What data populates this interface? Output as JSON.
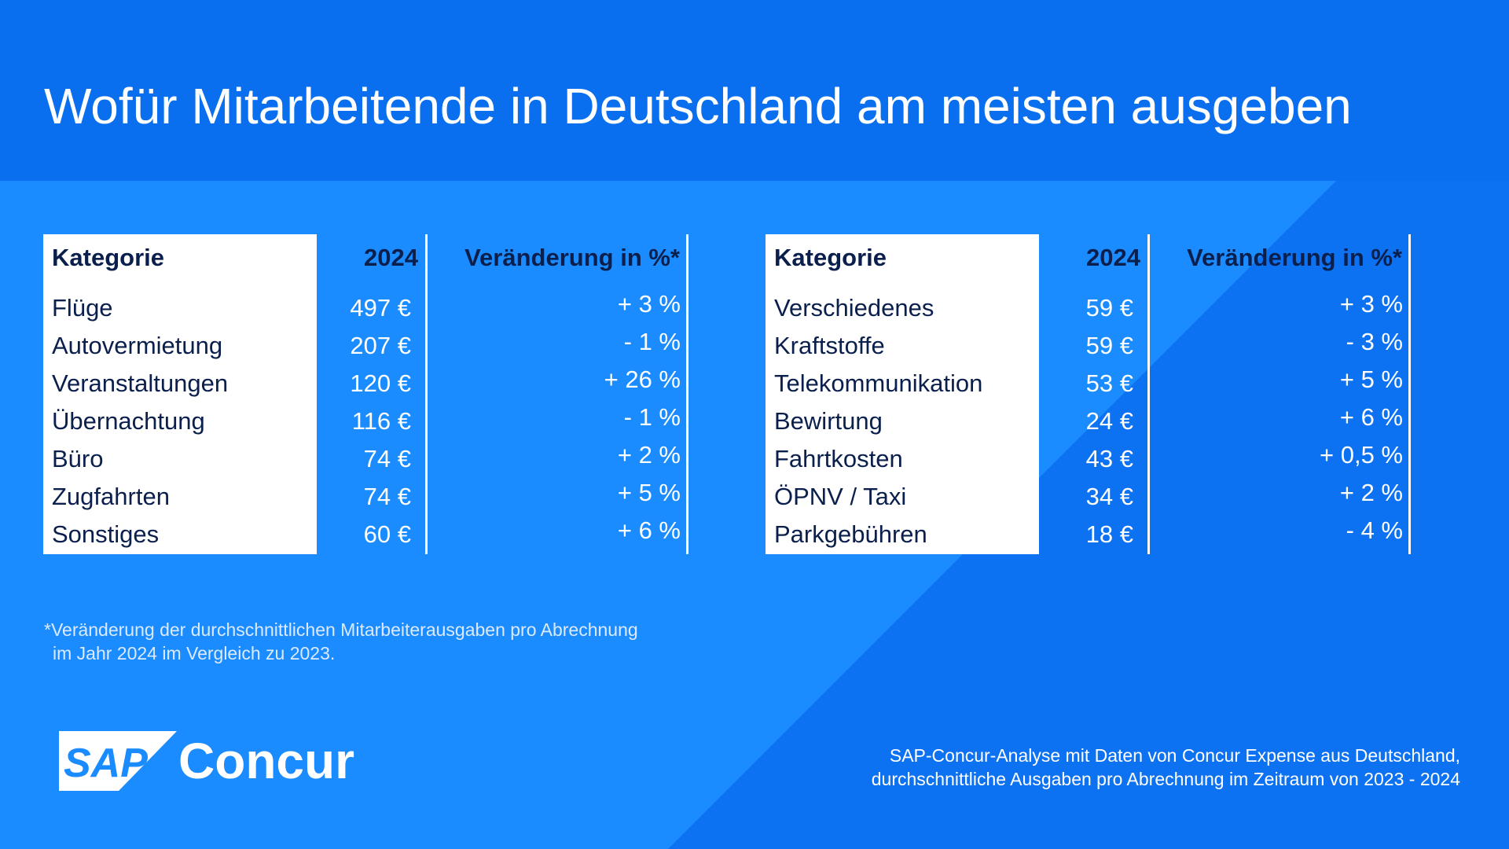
{
  "title": "Wofür Mitarbeitende in Deutschland am meisten ausgeben",
  "colors": {
    "header_bg": "#0a6fef",
    "panel_bg": "#1a8cff",
    "diagonal_bg": "#0d72f2",
    "label_text": "#0b1f4d",
    "white": "#ffffff"
  },
  "chart_data": [
    {
      "type": "table",
      "columns": [
        "Kategorie",
        "2024",
        "Veränderung in %*"
      ],
      "rows": [
        [
          "Flüge",
          "497 €",
          "+ 3 %"
        ],
        [
          "Autovermietung",
          "207 €",
          "- 1 %"
        ],
        [
          "Veranstaltungen",
          "120 €",
          "+ 26 %"
        ],
        [
          "Übernachtung",
          "116 €",
          "- 1 %"
        ],
        [
          "Büro",
          "74 €",
          "+ 2 %"
        ],
        [
          "Zugfahrten",
          "74 €",
          "+ 5 %"
        ],
        [
          "Sonstiges",
          "60 €",
          "+ 6 %"
        ]
      ]
    },
    {
      "type": "table",
      "columns": [
        "Kategorie",
        "2024",
        "Veränderung in %*"
      ],
      "rows": [
        [
          "Verschiedenes",
          "59 €",
          "+ 3 %"
        ],
        [
          "Kraftstoffe",
          "59 €",
          "- 3 %"
        ],
        [
          "Telekommunikation",
          "53 €",
          "+ 5 %"
        ],
        [
          "Bewirtung",
          "24 €",
          "+ 6 %"
        ],
        [
          "Fahrtkosten",
          "43 €",
          "+ 0,5 %"
        ],
        [
          "ÖPNV / Taxi",
          "34 €",
          "+ 2 %"
        ],
        [
          "Parkgebühren",
          "18 €",
          "- 4 %"
        ]
      ]
    }
  ],
  "footnote": {
    "line1": "*Veränderung der durchschnittlichen Mitarbeiterausgaben pro Abrechnung",
    "line2": "im Jahr 2024 im Vergleich zu 2023."
  },
  "logo": {
    "badge": "SAP",
    "name": "Concur"
  },
  "source": {
    "line1": "SAP-Concur-Analyse mit Daten von Concur Expense aus Deutschland,",
    "line2": "durchschnittliche Ausgaben pro Abrechnung im Zeitraum von 2023 - 2024"
  }
}
